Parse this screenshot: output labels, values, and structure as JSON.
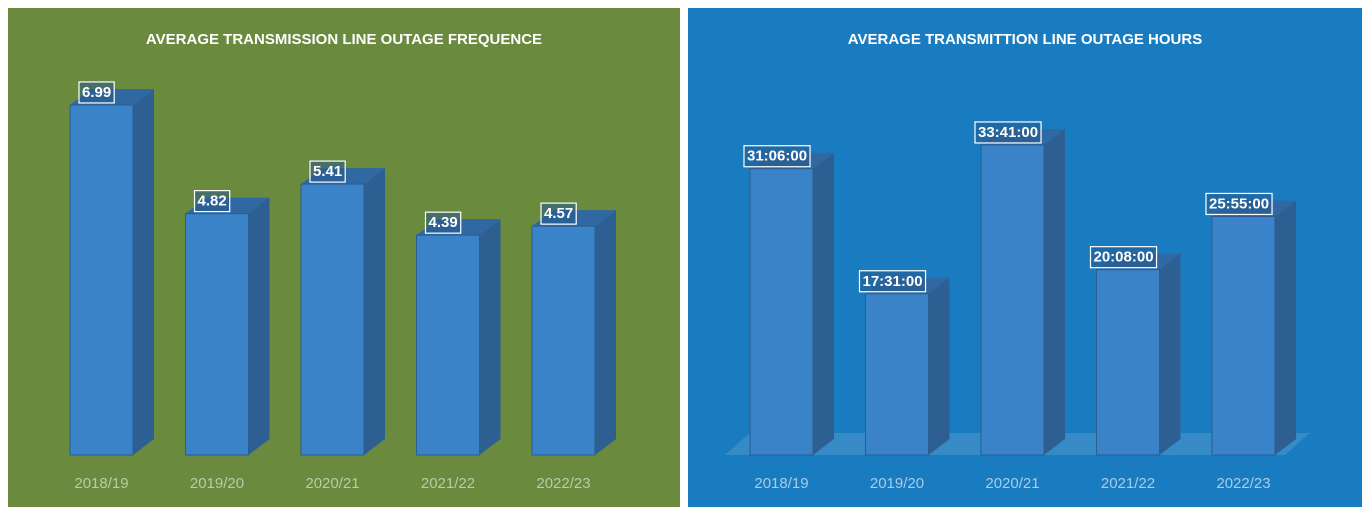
{
  "chart_data": [
    {
      "type": "bar3d",
      "title": "AVERAGE TRANSMISSION LINE OUTAGE FREQUENCE",
      "categories": [
        "2018/19",
        "2019/20",
        "2020/21",
        "2021/22",
        "2022/23"
      ],
      "values": [
        6.99,
        4.82,
        5.41,
        4.39,
        4.57
      ],
      "color": "#3b83c9",
      "background": "#6a8a3e"
    },
    {
      "type": "bar3d",
      "title": "AVERAGE TRANSMITTION LINE OUTAGE HOURS",
      "categories": [
        "2018/19",
        "2019/20",
        "2020/21",
        "2021/22",
        "2022/23"
      ],
      "values": [
        31.1,
        17.516667,
        33.683333,
        20.133333,
        25.916667
      ],
      "value_labels": [
        "31:06:00",
        "17:31:00",
        "33:41:00",
        "20:08:00",
        "25:55:00"
      ],
      "color": "#3b83c9",
      "background": "#1a7cc0",
      "floor": true
    }
  ]
}
